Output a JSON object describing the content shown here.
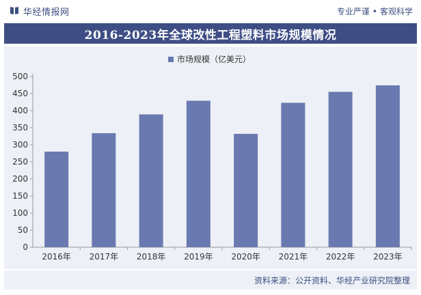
{
  "header": {
    "brand_name": "华经情报网",
    "slogan_left": "专业严谨",
    "slogan_separator": "•",
    "slogan_right": "客观科学",
    "logo_icon": "book-logo-icon"
  },
  "colors": {
    "bar": "#6a7ab0",
    "title_bg": "#3e4e85",
    "plot_bg": "#edf0f6",
    "text": "#3d4f80"
  },
  "chart_data": {
    "type": "bar",
    "title": "2016-2023年全球改性工程塑料市场规模情况",
    "categories": [
      "2016年",
      "2017年",
      "2018年",
      "2019年",
      "2020年",
      "2021年",
      "2022年",
      "2023年"
    ],
    "series": [
      {
        "name": "市场规模（亿美元）",
        "values": [
          280,
          334,
          389,
          429,
          332,
          423,
          455,
          474
        ]
      }
    ],
    "xlabel": "",
    "ylabel": "",
    "ylim": [
      0,
      500
    ],
    "yticks": [
      "0",
      "50",
      "100",
      "150",
      "200",
      "250",
      "300",
      "350",
      "400",
      "450",
      "500"
    ],
    "grid": false,
    "legend": "top-center"
  },
  "footer": {
    "source": "资料来源：公开资料、华经产业研究院整理"
  }
}
